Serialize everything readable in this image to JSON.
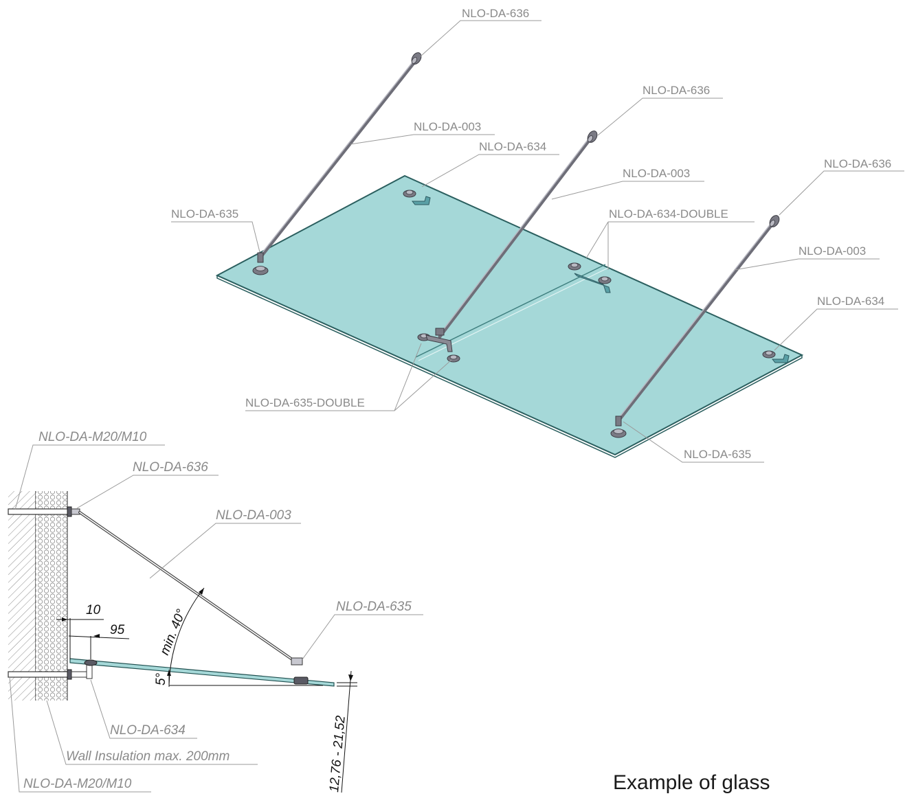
{
  "iso_view": {
    "glass_color": "#a5d8d8",
    "glass_edge_color": "#2b5f5f",
    "labels": {
      "rod_top_left": "NLO-DA-636",
      "rod_top_middle": "NLO-DA-636",
      "rod_top_right": "NLO-DA-636",
      "rod_left": "NLO-DA-003",
      "rod_middle": "NLO-DA-003",
      "rod_right": "NLO-DA-003",
      "clamp_back": "NLO-DA-634",
      "clamp_right": "NLO-DA-634",
      "clamp_left_front": "NLO-DA-635",
      "clamp_right_front": "NLO-DA-635",
      "double_back": "NLO-DA-634-DOUBLE",
      "double_front": "NLO-DA-635-DOUBLE"
    }
  },
  "section_view": {
    "labels": {
      "anchor_top": "NLO-DA-M20/M10",
      "wall_fitting": "NLO-DA-636",
      "rod": "NLO-DA-003",
      "glass_clamp": "NLO-DA-635",
      "wall_clamp": "NLO-DA-634",
      "insulation": "Wall Insulation max. 200mm",
      "anchor_bottom": "NLO-DA-M20/M10"
    },
    "dimensions": {
      "offset_small": "10",
      "offset_large": "95",
      "angle_rod": "min. 40°",
      "angle_glass": "5°",
      "glass_thickness": "12,76 - 21,52"
    }
  },
  "caption": "Example of glass"
}
